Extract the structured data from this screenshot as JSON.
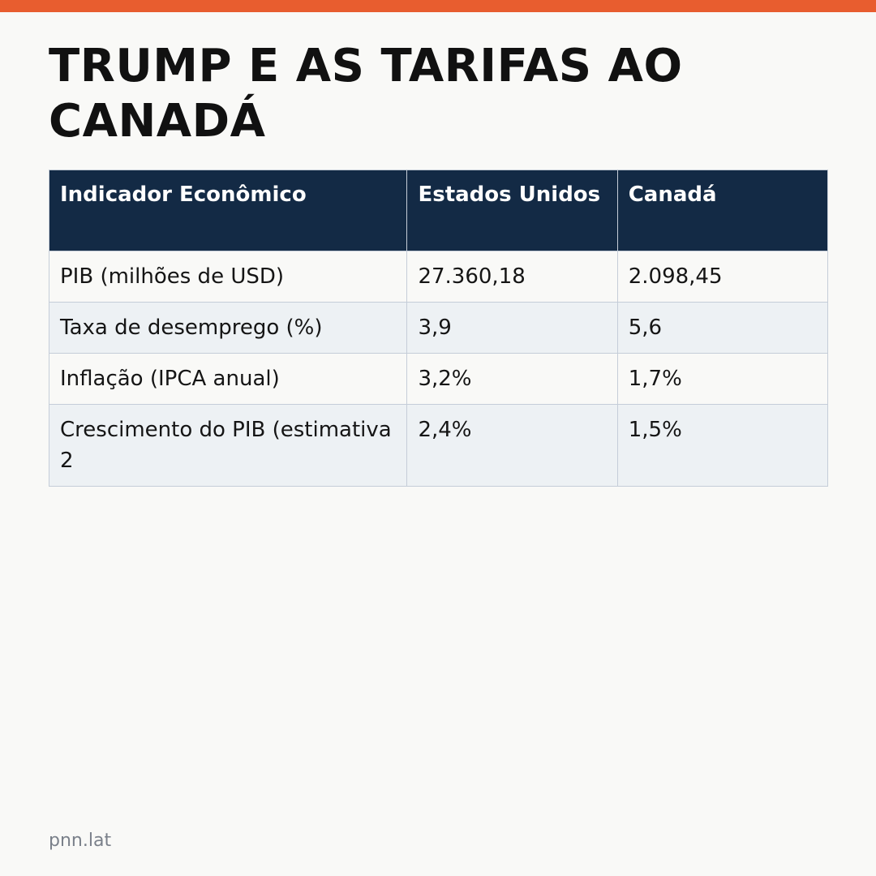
{
  "title": "TRUMP E AS TARIFAS AO CANADÁ",
  "table": {
    "headers": [
      "Indicador Econômico",
      "Estados Unidos",
      "Canadá"
    ],
    "rows": [
      [
        "PIB (milhões de USD)",
        "27.360,18",
        "2.098,45"
      ],
      [
        "Taxa de desemprego (%)",
        "3,9",
        "5,6"
      ],
      [
        "Inflação (IPCA anual)",
        "3,2%",
        "1,7%"
      ],
      [
        "Crescimento do PIB (estimativa 2",
        "2,4%",
        "1,5%"
      ]
    ]
  },
  "footer": {
    "source": "pnn.lat"
  },
  "colors": {
    "accent_bar": "#e85d2f",
    "header_bg": "#132a45",
    "row_alt_bg": "#edf1f4"
  }
}
